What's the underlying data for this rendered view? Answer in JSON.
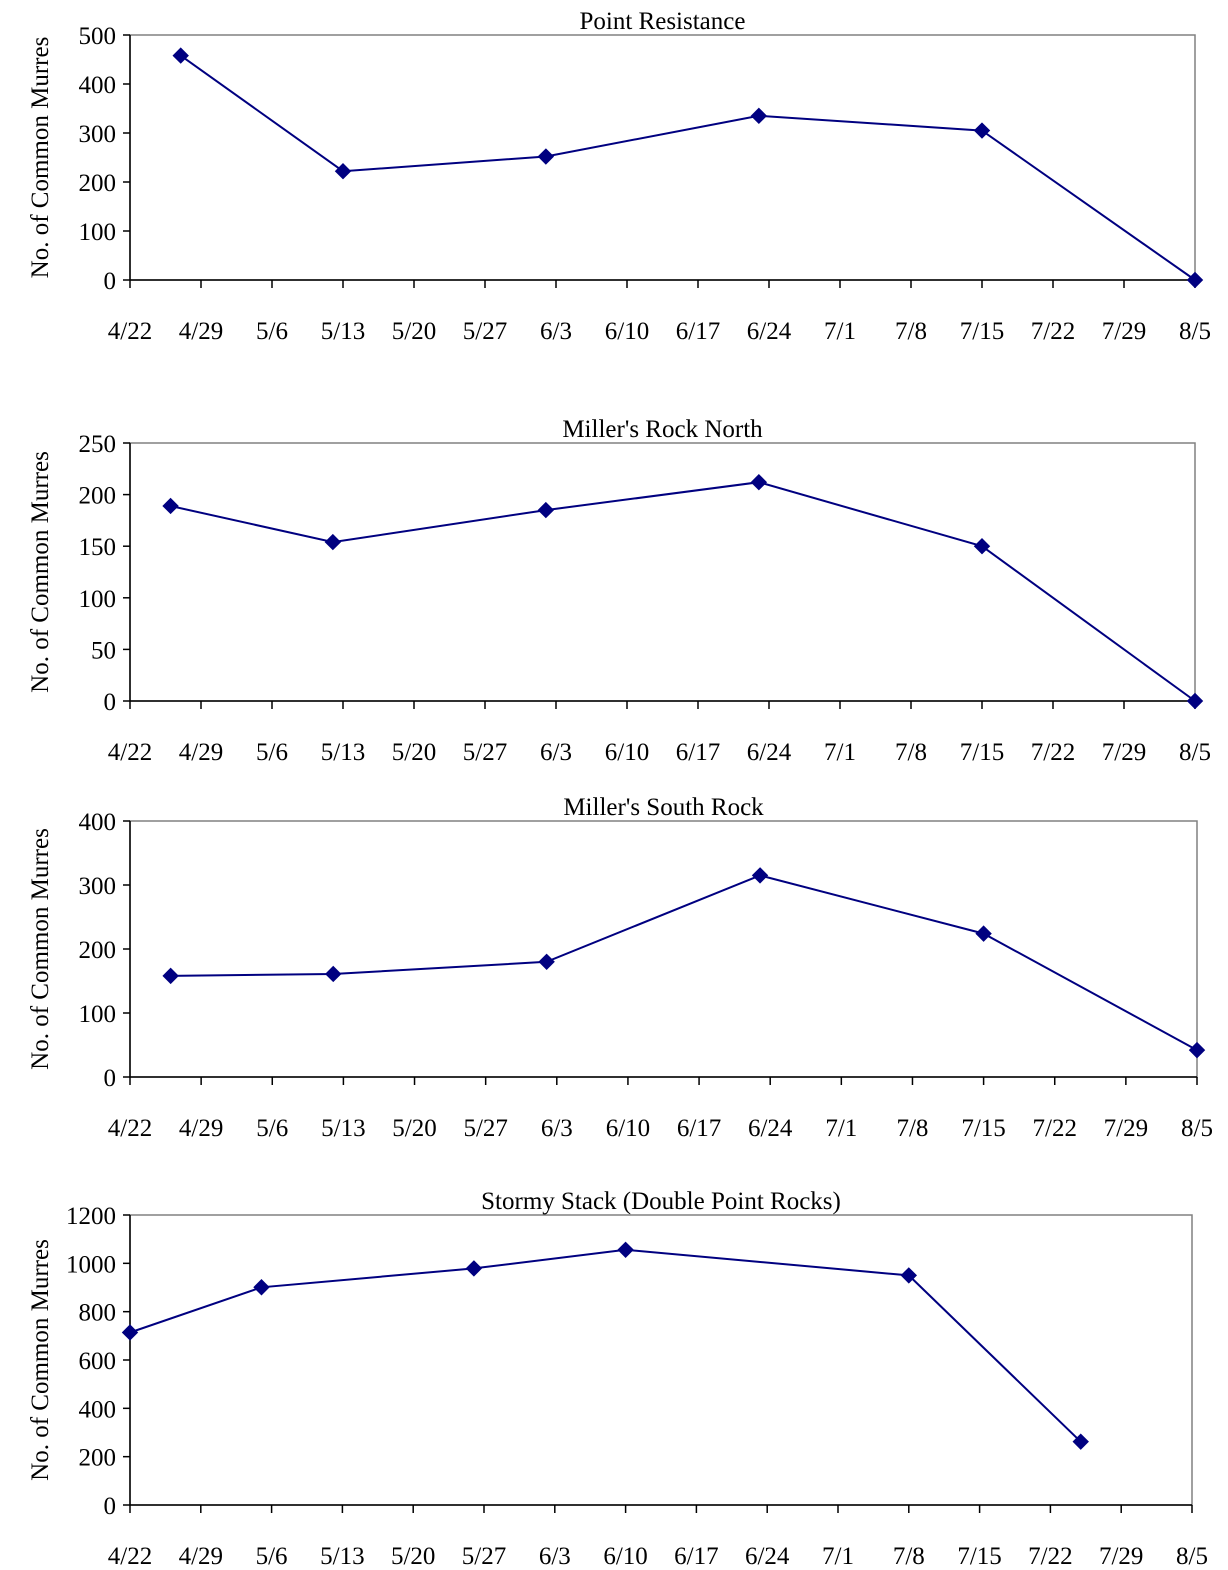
{
  "chart_data": [
    {
      "type": "line",
      "title": "Point Resistance",
      "xlabel": "",
      "ylabel": "No. of Common Murres",
      "ylim": [
        0,
        500
      ],
      "yticks": [
        0,
        100,
        200,
        300,
        400,
        500
      ],
      "xlim": [
        "4/22",
        "8/5"
      ],
      "xticks": [
        "4/22",
        "4/29",
        "5/6",
        "5/13",
        "5/20",
        "5/27",
        "6/3",
        "6/10",
        "6/17",
        "6/24",
        "7/1",
        "7/8",
        "7/15",
        "7/22",
        "7/29",
        "8/5"
      ],
      "grid": false,
      "legend": "none",
      "x": [
        "4/27",
        "5/13",
        "6/2",
        "6/23",
        "7/15",
        "8/5"
      ],
      "values": [
        458,
        222,
        252,
        335,
        305,
        0
      ]
    },
    {
      "type": "line",
      "title": "Miller's Rock North",
      "xlabel": "",
      "ylabel": "No. of Common Murres",
      "ylim": [
        0,
        250
      ],
      "yticks": [
        0,
        50,
        100,
        150,
        200,
        250
      ],
      "xlim": [
        "4/22",
        "8/5"
      ],
      "xticks": [
        "4/22",
        "4/29",
        "5/6",
        "5/13",
        "5/20",
        "5/27",
        "6/3",
        "6/10",
        "6/17",
        "6/24",
        "7/1",
        "7/8",
        "7/15",
        "7/22",
        "7/29",
        "8/5"
      ],
      "grid": false,
      "legend": "none",
      "x": [
        "4/26",
        "5/12",
        "6/2",
        "6/23",
        "7/15",
        "8/5"
      ],
      "values": [
        189,
        154,
        185,
        212,
        150,
        0
      ]
    },
    {
      "type": "line",
      "title": "Miller's South Rock",
      "xlabel": "",
      "ylabel": "No. of Common Murres",
      "ylim": [
        0,
        400
      ],
      "yticks": [
        0,
        100,
        200,
        300,
        400
      ],
      "xlim": [
        "4/22",
        "8/5"
      ],
      "xticks": [
        "4/22",
        "4/29",
        "5/6",
        "5/13",
        "5/20",
        "5/27",
        "6/3",
        "6/10",
        "6/17",
        "6/24",
        "7/1",
        "7/8",
        "7/15",
        "7/22",
        "7/29",
        "8/5"
      ],
      "grid": false,
      "legend": "none",
      "x": [
        "4/26",
        "5/12",
        "6/2",
        "6/23",
        "7/15",
        "8/5"
      ],
      "values": [
        158,
        161,
        180,
        315,
        224,
        42
      ]
    },
    {
      "type": "line",
      "title": "Stormy Stack (Double Point Rocks)",
      "xlabel": "",
      "ylabel": "No. of Common Murres",
      "ylim": [
        0,
        1200
      ],
      "yticks": [
        0,
        200,
        400,
        600,
        800,
        1000,
        1200
      ],
      "xlim": [
        "4/22",
        "8/5"
      ],
      "xticks": [
        "4/22",
        "4/29",
        "5/6",
        "5/13",
        "5/20",
        "5/27",
        "6/3",
        "6/10",
        "6/17",
        "6/24",
        "7/1",
        "7/8",
        "7/15",
        "7/22",
        "7/29",
        "8/5"
      ],
      "grid": false,
      "legend": "none",
      "x": [
        "4/22",
        "5/5",
        "5/26",
        "6/10",
        "7/8",
        "7/25"
      ],
      "values": [
        714,
        901,
        979,
        1056,
        950,
        262
      ]
    }
  ]
}
